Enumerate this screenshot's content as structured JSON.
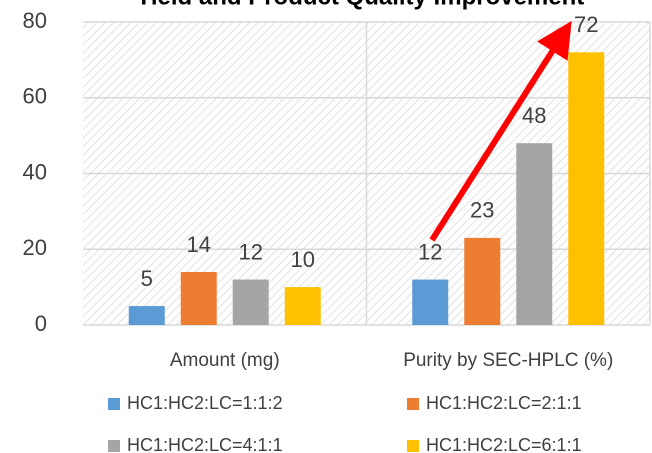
{
  "chart_data": {
    "type": "bar",
    "title": "Yield and Product Quality Improvement",
    "categories": [
      "Amount (mg)",
      "Purity by SEC-HPLC (%)"
    ],
    "series": [
      {
        "name": "HC1:HC2:LC=1:1:2",
        "color": "#5b9bd5",
        "values": [
          5,
          12
        ]
      },
      {
        "name": "HC1:HC2:LC=2:1:1",
        "color": "#ed7d31",
        "values": [
          14,
          23
        ]
      },
      {
        "name": "HC1:HC2:LC=4:1:1",
        "color": "#a5a5a5",
        "values": [
          12,
          48
        ]
      },
      {
        "name": "HC1:HC2:LC=6:1:1",
        "color": "#ffc000",
        "values": [
          10,
          72
        ]
      }
    ],
    "ylim": [
      0,
      80
    ],
    "yticks": [
      0,
      20,
      40,
      60,
      80
    ],
    "grid": true,
    "legend": "bottom"
  }
}
